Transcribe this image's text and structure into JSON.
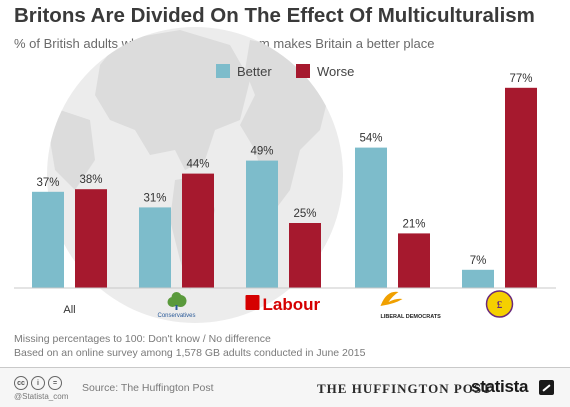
{
  "title": "Britons Are Divided On The Effect Of Multiculturalism",
  "subtitle": "% of British adults who think multiculturalism makes Britain a better place",
  "chart_data": {
    "type": "bar",
    "categories": [
      "All",
      "Conservatives",
      "Labour",
      "Liberal Democrats",
      "UKIP"
    ],
    "category_logo_text": [
      "",
      "Conservatives",
      "Labour",
      "LIBERAL DEMOCRATS",
      "UKIP"
    ],
    "series": [
      {
        "name": "Better",
        "values": [
          37,
          31,
          49,
          54,
          7
        ],
        "labels": [
          "37%",
          "31%",
          "49%",
          "54%",
          "7%"
        ],
        "color": "#7dbccb"
      },
      {
        "name": "Worse",
        "values": [
          38,
          44,
          25,
          21,
          77
        ],
        "labels": [
          "38%",
          "44%",
          "25%",
          "21%",
          "77%"
        ],
        "color": "#a6192e"
      }
    ],
    "ylim": [
      0,
      80
    ],
    "legend_position": "top-center",
    "grid": false
  },
  "notes": {
    "line1": "Missing percentages to 100: Don't know / No difference",
    "line2": "Based on an online survey among 1,578 GB adults conducted in June 2015"
  },
  "footer": {
    "handle": "@Statista_com",
    "source": "Source: The Huffington Post",
    "huffpost": "THE HUFFINGTON POST",
    "brand": "statista",
    "cc_icons": [
      "cc-icon",
      "by-icon",
      "equals-icon"
    ]
  },
  "colors": {
    "better": "#7dbccb",
    "worse": "#a6192e",
    "conservatives": "#5a9a3c",
    "labour": "#d50000",
    "libdem": "#f0a000",
    "ukip": "#6a2a7a",
    "globe": "#e3e3e3"
  }
}
